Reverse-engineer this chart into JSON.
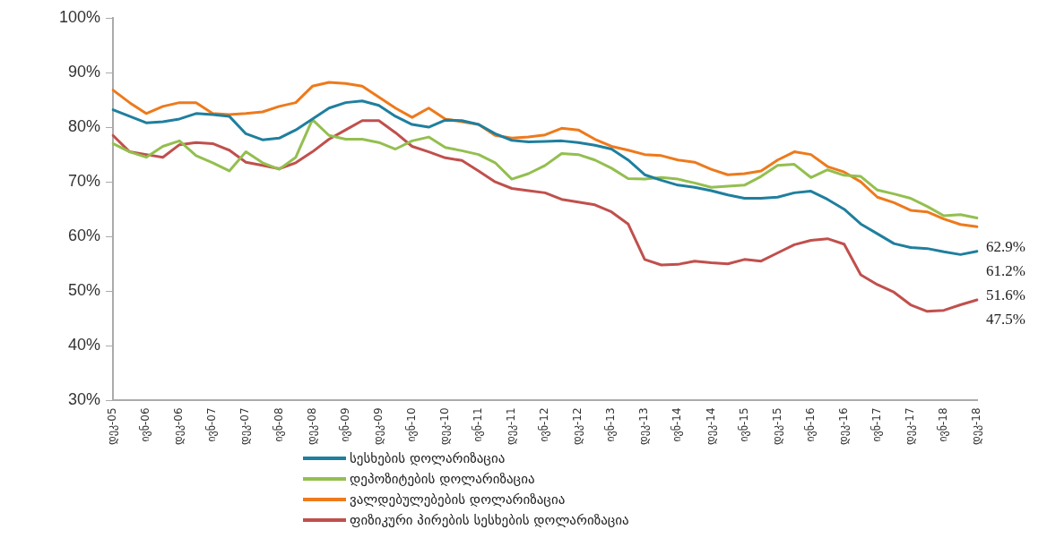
{
  "chart_data": {
    "type": "line",
    "categories": [
      "დეკ-05",
      null,
      "ივნ-06",
      null,
      "დეკ-06",
      null,
      "ივნ-07",
      null,
      "დეკ-07",
      null,
      "ივნ-08",
      null,
      "დეკ-08",
      null,
      "ივნ-09",
      null,
      "დეკ-09",
      null,
      "ივნ-10",
      null,
      "დეკ-10",
      null,
      "ივნ-11",
      null,
      "დეკ-11",
      null,
      "ივნ-12",
      null,
      "დეკ-12",
      null,
      "ივნ-13",
      null,
      "დეკ-13",
      null,
      "ივნ-14",
      null,
      "დეკ-14",
      null,
      "ივნ-15",
      null,
      "დეკ-15",
      null,
      "ივნ-16",
      null,
      "დეკ-16",
      null,
      "ივნ-17",
      null,
      "დეკ-17",
      null,
      "ივნ-18",
      null,
      "დეკ-18"
    ],
    "series": [
      {
        "name": "სესხების დოლარიზაცია",
        "color": "#1f7f9e",
        "values": [
          83.2,
          82,
          80.8,
          81,
          81.5,
          82.5,
          82.3,
          82,
          78.8,
          77.7,
          78,
          79.5,
          81.5,
          83.5,
          84.5,
          84.8,
          84,
          82,
          80.5,
          80,
          81.3,
          81.2,
          80.5,
          78.8,
          77.6,
          77.3,
          77.4,
          77.5,
          77.2,
          76.7,
          76,
          74,
          71.3,
          70.3,
          69.4,
          69,
          68.4,
          67.6,
          67,
          67,
          67.2,
          68,
          68.3,
          66.8,
          65,
          62.3,
          60.5,
          58.7,
          58,
          57.8,
          57.2,
          56.7,
          57.3
        ]
      },
      {
        "name": "დეპოზიტების დოლარიზაცია",
        "color": "#93bf4f",
        "values": [
          77,
          75.5,
          74.5,
          76.5,
          77.5,
          74.8,
          73.5,
          72,
          75.5,
          73.5,
          72.3,
          74.5,
          81.4,
          78.5,
          77.8,
          77.8,
          77.2,
          76,
          77.5,
          78.2,
          76.3,
          75.7,
          75,
          73.5,
          70.5,
          71.5,
          73,
          75.2,
          75,
          74,
          72.5,
          70.6,
          70.5,
          70.8,
          70.5,
          69.8,
          69,
          69.2,
          69.4,
          71,
          73,
          73.2,
          70.8,
          72.2,
          71.2,
          71,
          68.5,
          67.8,
          67,
          65.5,
          63.8,
          64,
          63.4
        ]
      },
      {
        "name": "ვალდებულებების  დოლარიზაცია",
        "color": "#ed7a1c",
        "values": [
          86.8,
          84.5,
          82.5,
          83.8,
          84.5,
          84.5,
          82.5,
          82.3,
          82.5,
          82.8,
          83.8,
          84.5,
          87.5,
          88.2,
          88,
          87.5,
          85.5,
          83.5,
          81.8,
          83.5,
          81.5,
          81,
          80.5,
          78.5,
          78,
          78.2,
          78.6,
          79.8,
          79.5,
          77.8,
          76.5,
          75.8,
          75,
          74.8,
          74,
          73.6,
          72.3,
          71.3,
          71.5,
          72,
          74,
          75.5,
          75,
          72.8,
          71.8,
          70,
          67.2,
          66.2,
          64.8,
          64.5,
          63.2,
          62.2,
          61.8
        ]
      },
      {
        "name": "ფიზიკური პირების სესხების დოლარიზაცია",
        "color": "#c0504d",
        "values": [
          78.5,
          75.5,
          75,
          74.5,
          76.8,
          77.2,
          77,
          75.8,
          73.6,
          73,
          72.4,
          73.5,
          75.5,
          77.8,
          79.5,
          81.2,
          81.2,
          79,
          76.5,
          75.5,
          74.4,
          73.9,
          72,
          70,
          68.8,
          68.4,
          68,
          66.8,
          66.3,
          65.8,
          64.5,
          62.3,
          55.8,
          54.8,
          54.9,
          55.5,
          55.2,
          55,
          55.8,
          55.5,
          57,
          58.5,
          59.3,
          59.6,
          58.6,
          53,
          51.2,
          49.8,
          47.5,
          46.3,
          46.5,
          47.5,
          48.4
        ]
      }
    ],
    "ylim": [
      30,
      100
    ],
    "yticks": [
      {
        "value": 30,
        "label": "30%"
      },
      {
        "value": 40,
        "label": "40%"
      },
      {
        "value": 50,
        "label": "50%"
      },
      {
        "value": 60,
        "label": "60%"
      },
      {
        "value": 70,
        "label": "70%"
      },
      {
        "value": 80,
        "label": "80%"
      },
      {
        "value": 90,
        "label": "90%"
      },
      {
        "value": 100,
        "label": "100%"
      }
    ],
    "annotations": [
      "62.9%",
      "61.2%",
      "51.6%",
      "47.5%"
    ],
    "grid": false,
    "legend": "bottom",
    "marker": "none",
    "line_style": "solid"
  }
}
